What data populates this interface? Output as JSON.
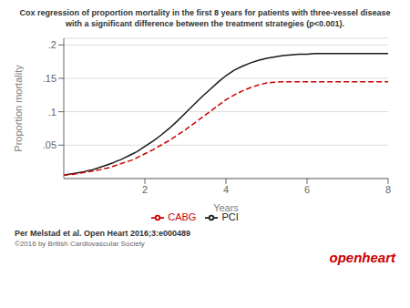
{
  "chart_data": {
    "type": "line",
    "title": "Cox regression of proportion mortality in the first 8 years for patients with three-vessel disease",
    "subtitle": "with a significant difference between the treatment strategies (p<0.001).",
    "x_label": "Years",
    "y_label": "Proportion mortality",
    "xlim": [
      0,
      8
    ],
    "ylim": [
      0,
      0.21
    ],
    "xticks": [
      2,
      4,
      6,
      8
    ],
    "yticks": [
      {
        "value": 0.05,
        "label": ".05"
      },
      {
        "value": 0.1,
        "label": ".1"
      },
      {
        "value": 0.15,
        "label": ".15"
      },
      {
        "value": 0.2,
        "label": ".2"
      }
    ],
    "grid": "y",
    "legend": "bottom",
    "x": [
      0.0,
      0.1,
      0.2,
      0.3,
      0.4,
      0.5,
      0.6,
      0.7,
      0.8,
      0.9,
      1.0,
      1.1,
      1.2,
      1.3,
      1.4,
      1.5,
      1.6,
      1.7,
      1.8,
      1.9,
      2.0,
      2.2,
      2.4,
      2.6,
      2.8,
      3.0,
      3.2,
      3.4,
      3.6,
      3.8,
      4.0,
      4.2,
      4.4,
      4.6,
      4.8,
      5.0,
      5.2,
      5.4,
      5.6,
      5.8,
      6.0,
      6.2,
      6.4,
      6.6,
      6.8,
      7.0,
      7.2,
      7.4,
      7.6,
      7.8,
      8.0
    ],
    "series": [
      {
        "name": "PCI",
        "color": "#1a1a1a",
        "line_style": "solid",
        "values": [
          0.005,
          0.006,
          0.007,
          0.008,
          0.009,
          0.01,
          0.012,
          0.013,
          0.015,
          0.017,
          0.019,
          0.021,
          0.023,
          0.026,
          0.028,
          0.031,
          0.034,
          0.037,
          0.04,
          0.044,
          0.048,
          0.056,
          0.065,
          0.075,
          0.086,
          0.098,
          0.11,
          0.122,
          0.133,
          0.144,
          0.154,
          0.162,
          0.168,
          0.173,
          0.177,
          0.18,
          0.182,
          0.184,
          0.185,
          0.186,
          0.186,
          0.187,
          0.187,
          0.187,
          0.187,
          0.187,
          0.187,
          0.187,
          0.187,
          0.187,
          0.187
        ]
      },
      {
        "name": "CABG",
        "color": "#cc0000",
        "line_style": "dashed",
        "values": [
          0.005,
          0.006,
          0.006,
          0.007,
          0.008,
          0.009,
          0.01,
          0.011,
          0.012,
          0.013,
          0.015,
          0.016,
          0.018,
          0.02,
          0.022,
          0.024,
          0.026,
          0.028,
          0.031,
          0.034,
          0.037,
          0.043,
          0.05,
          0.057,
          0.065,
          0.073,
          0.082,
          0.091,
          0.1,
          0.109,
          0.118,
          0.125,
          0.131,
          0.136,
          0.14,
          0.143,
          0.144,
          0.145,
          0.145,
          0.145,
          0.145,
          0.145,
          0.145,
          0.145,
          0.145,
          0.145,
          0.145,
          0.145,
          0.145,
          0.145,
          0.145
        ]
      }
    ],
    "annotations": [
      {
        "text": "Per Melstad et al. Open Heart 2016;3:e000489"
      },
      {
        "text": "©2016 by British Cardiovascular Society"
      },
      {
        "text": "openheart",
        "color": "#cc0000"
      }
    ]
  }
}
